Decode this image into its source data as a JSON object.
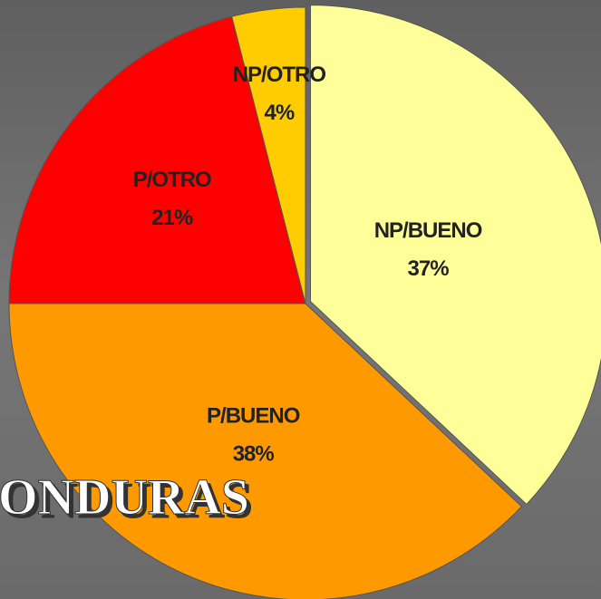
{
  "chart_data": {
    "type": "pie",
    "categories": [
      "NP/BUENO",
      "P/BUENO",
      "P/OTRO",
      "NP/OTRO"
    ],
    "values": [
      37,
      38,
      21,
      4
    ],
    "value_labels": [
      "37%",
      "38%",
      "21%",
      "4%"
    ],
    "colors": [
      "#ffff99",
      "#ff9900",
      "#ff0000",
      "#ffcc00"
    ],
    "annotation": "ONDURAS"
  }
}
